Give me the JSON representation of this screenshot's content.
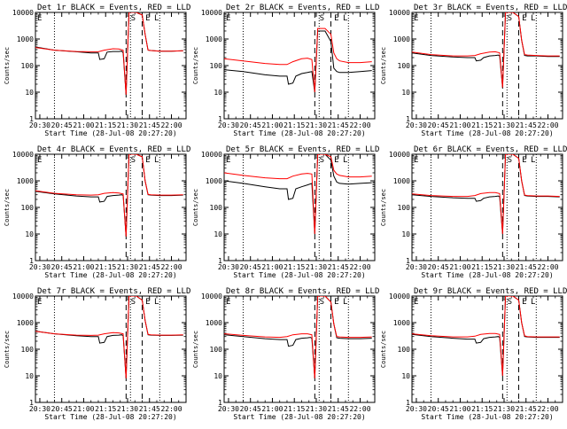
{
  "figure": {
    "x_axis_label": "Start Time (28-Jul-08 20:27:20)",
    "y_axis_label": "Counts/sec",
    "x_ticks": [
      "20:30",
      "20:45",
      "21:00",
      "21:15",
      "21:30",
      "21:45",
      "22:00"
    ],
    "y_ticks": [
      "1",
      "10",
      "100",
      "1000",
      "10000"
    ],
    "markers": [
      "E",
      "S",
      "E",
      "L"
    ],
    "series_colors": {
      "events": "#000000",
      "lld": "#ff0000"
    }
  },
  "chart_data": [
    {
      "type": "line",
      "title": "Det 1r BLACK = Events, RED = LLD",
      "y_scale": "log",
      "ylim": [
        1,
        10000
      ],
      "xlim": [
        "20:27",
        "22:10"
      ],
      "series": [
        {
          "color": "#000000",
          "x": [
            "20:27",
            "20:40",
            "20:55",
            "21:05",
            "21:10",
            "21:11",
            "21:14",
            "21:16",
            "21:20",
            "21:24",
            "21:26",
            "21:27",
            "21:29",
            "21:31",
            "21:33",
            "21:36",
            "21:40",
            "21:42",
            "21:44",
            "21:46",
            "21:52",
            "22:00",
            "22:08"
          ],
          "y": [
            500,
            380,
            330,
            300,
            300,
            170,
            180,
            320,
            340,
            340,
            350,
            300,
            8,
            10000,
            10000,
            10000,
            8000,
            1500,
            380,
            370,
            350,
            350,
            360
          ]
        },
        {
          "color": "#ff0000",
          "x": [
            "20:27",
            "20:40",
            "20:55",
            "21:05",
            "21:10",
            "21:14",
            "21:20",
            "21:24",
            "21:27",
            "21:29",
            "21:31",
            "21:33",
            "21:36",
            "21:40",
            "21:42",
            "21:44",
            "21:46",
            "21:52",
            "22:00",
            "22:08"
          ],
          "y": [
            480,
            380,
            340,
            330,
            330,
            380,
            430,
            420,
            380,
            8,
            10000,
            10000,
            10000,
            8000,
            1500,
            380,
            370,
            350,
            350,
            360
          ]
        }
      ]
    },
    {
      "type": "line",
      "title": "Det 2r BLACK = Events, RED = LLD",
      "y_scale": "log",
      "ylim": [
        1,
        10000
      ],
      "xlim": [
        "20:27",
        "22:10"
      ],
      "series": [
        {
          "color": "#000000",
          "x": [
            "20:27",
            "20:40",
            "20:55",
            "21:05",
            "21:10",
            "21:11",
            "21:14",
            "21:16",
            "21:20",
            "21:24",
            "21:27",
            "21:29",
            "21:31",
            "21:33",
            "21:36",
            "21:40",
            "21:42",
            "21:44",
            "21:46",
            "21:52",
            "22:00",
            "22:08"
          ],
          "y": [
            70,
            60,
            45,
            40,
            40,
            20,
            22,
            40,
            50,
            55,
            60,
            10,
            2000,
            2000,
            2000,
            800,
            80,
            60,
            55,
            55,
            60,
            65
          ]
        },
        {
          "color": "#ff0000",
          "x": [
            "20:27",
            "20:40",
            "20:55",
            "21:05",
            "21:10",
            "21:14",
            "21:20",
            "21:24",
            "21:27",
            "21:29",
            "21:31",
            "21:33",
            "21:36",
            "21:40",
            "21:42",
            "21:44",
            "21:46",
            "21:52",
            "22:00",
            "22:08"
          ],
          "y": [
            180,
            150,
            120,
            110,
            110,
            140,
            180,
            190,
            170,
            10,
            2500,
            2500,
            2500,
            1500,
            300,
            180,
            150,
            130,
            130,
            140
          ]
        }
      ]
    },
    {
      "type": "line",
      "title": "Det 3r BLACK = Events, RED = LLD",
      "y_scale": "log",
      "ylim": [
        1,
        10000
      ],
      "xlim": [
        "20:27",
        "22:10"
      ],
      "series": [
        {
          "color": "#000000",
          "x": [
            "20:27",
            "20:40",
            "20:55",
            "21:05",
            "21:10",
            "21:11",
            "21:14",
            "21:16",
            "21:20",
            "21:24",
            "21:26",
            "21:27",
            "21:29",
            "21:31",
            "21:33",
            "21:36",
            "21:40",
            "21:42",
            "21:44",
            "21:46",
            "21:52",
            "22:00",
            "22:08"
          ],
          "y": [
            300,
            240,
            210,
            200,
            200,
            150,
            160,
            200,
            230,
            240,
            250,
            230,
            15,
            10000,
            10000,
            10000,
            7000,
            900,
            240,
            230,
            230,
            220,
            220
          ]
        },
        {
          "color": "#ff0000",
          "x": [
            "20:27",
            "20:40",
            "20:55",
            "21:05",
            "21:10",
            "21:14",
            "21:20",
            "21:24",
            "21:27",
            "21:29",
            "21:31",
            "21:33",
            "21:36",
            "21:40",
            "21:42",
            "21:44",
            "21:46",
            "21:52",
            "22:00",
            "22:08"
          ],
          "y": [
            320,
            260,
            230,
            230,
            240,
            280,
            320,
            330,
            300,
            15,
            10000,
            10000,
            10000,
            7000,
            900,
            260,
            250,
            240,
            230,
            230
          ]
        }
      ]
    },
    {
      "type": "line",
      "title": "Det 4r BLACK = Events, RED = LLD",
      "y_scale": "log",
      "ylim": [
        1,
        10000
      ],
      "xlim": [
        "20:27",
        "22:10"
      ],
      "series": [
        {
          "color": "#000000",
          "x": [
            "20:27",
            "20:40",
            "20:55",
            "21:05",
            "21:10",
            "21:11",
            "21:14",
            "21:16",
            "21:20",
            "21:24",
            "21:26",
            "21:27",
            "21:29",
            "21:31",
            "21:33",
            "21:36",
            "21:40",
            "21:42",
            "21:44",
            "21:46",
            "21:52",
            "22:00",
            "22:08"
          ],
          "y": [
            400,
            320,
            270,
            250,
            250,
            160,
            170,
            260,
            280,
            290,
            300,
            280,
            8,
            10000,
            10000,
            10000,
            8000,
            1000,
            300,
            290,
            280,
            280,
            290
          ]
        },
        {
          "color": "#ff0000",
          "x": [
            "20:27",
            "20:40",
            "20:55",
            "21:05",
            "21:10",
            "21:14",
            "21:20",
            "21:24",
            "21:27",
            "21:29",
            "21:31",
            "21:33",
            "21:36",
            "21:40",
            "21:42",
            "21:44",
            "21:46",
            "21:52",
            "22:00",
            "22:08"
          ],
          "y": [
            420,
            340,
            300,
            290,
            300,
            340,
            360,
            350,
            320,
            8,
            10000,
            10000,
            10000,
            8000,
            1000,
            310,
            300,
            290,
            290,
            300
          ]
        }
      ]
    },
    {
      "type": "line",
      "title": "Det 5r BLACK = Events, RED = LLD",
      "y_scale": "log",
      "ylim": [
        1,
        10000
      ],
      "xlim": [
        "20:27",
        "22:10"
      ],
      "series": [
        {
          "color": "#000000",
          "x": [
            "20:27",
            "20:40",
            "20:55",
            "21:05",
            "21:10",
            "21:11",
            "21:14",
            "21:16",
            "21:20",
            "21:24",
            "21:27",
            "21:29",
            "21:31",
            "21:33",
            "21:36",
            "21:40",
            "21:42",
            "21:44",
            "21:46",
            "21:52",
            "22:00",
            "22:08"
          ],
          "y": [
            1000,
            800,
            600,
            500,
            500,
            200,
            220,
            500,
            600,
            700,
            800,
            10,
            10000,
            10000,
            10000,
            6000,
            1500,
            900,
            800,
            750,
            800,
            850
          ]
        },
        {
          "color": "#ff0000",
          "x": [
            "20:27",
            "20:40",
            "20:55",
            "21:05",
            "21:10",
            "21:14",
            "21:20",
            "21:24",
            "21:27",
            "21:29",
            "21:31",
            "21:33",
            "21:36",
            "21:40",
            "21:42",
            "21:44",
            "21:46",
            "21:52",
            "22:00",
            "22:08"
          ],
          "y": [
            2000,
            1600,
            1300,
            1200,
            1200,
            1500,
            1800,
            1900,
            1800,
            10,
            10000,
            10000,
            10000,
            8000,
            2500,
            1800,
            1600,
            1400,
            1400,
            1500
          ]
        }
      ]
    },
    {
      "type": "line",
      "title": "Det 6r BLACK = Events, RED = LLD",
      "y_scale": "log",
      "ylim": [
        1,
        10000
      ],
      "xlim": [
        "20:27",
        "22:10"
      ],
      "series": [
        {
          "color": "#000000",
          "x": [
            "20:27",
            "20:40",
            "20:55",
            "21:05",
            "21:10",
            "21:11",
            "21:14",
            "21:16",
            "21:20",
            "21:24",
            "21:26",
            "21:27",
            "21:29",
            "21:31",
            "21:33",
            "21:36",
            "21:40",
            "21:42",
            "21:44",
            "21:46",
            "21:52",
            "22:00",
            "22:08"
          ],
          "y": [
            300,
            260,
            230,
            220,
            220,
            170,
            180,
            220,
            250,
            260,
            270,
            250,
            10,
            10000,
            10000,
            10000,
            7000,
            1000,
            280,
            270,
            260,
            260,
            250
          ]
        },
        {
          "color": "#ff0000",
          "x": [
            "20:27",
            "20:40",
            "20:55",
            "21:05",
            "21:10",
            "21:14",
            "21:20",
            "21:24",
            "21:27",
            "21:29",
            "21:31",
            "21:33",
            "21:36",
            "21:40",
            "21:42",
            "21:44",
            "21:46",
            "21:52",
            "22:00",
            "22:08"
          ],
          "y": [
            320,
            280,
            260,
            260,
            280,
            330,
            360,
            360,
            330,
            10,
            10000,
            10000,
            10000,
            7000,
            1000,
            290,
            280,
            270,
            270,
            260
          ]
        }
      ]
    },
    {
      "type": "line",
      "title": "Det 7r BLACK = Events, RED = LLD",
      "y_scale": "log",
      "ylim": [
        1,
        10000
      ],
      "xlim": [
        "20:27",
        "22:10"
      ],
      "series": [
        {
          "color": "#000000",
          "x": [
            "20:27",
            "20:40",
            "20:55",
            "21:05",
            "21:10",
            "21:11",
            "21:14",
            "21:16",
            "21:20",
            "21:24",
            "21:26",
            "21:27",
            "21:29",
            "21:31",
            "21:33",
            "21:36",
            "21:40",
            "21:42",
            "21:44",
            "21:46",
            "21:52",
            "22:00",
            "22:08"
          ],
          "y": [
            480,
            380,
            320,
            300,
            300,
            170,
            180,
            300,
            330,
            340,
            350,
            320,
            8,
            10000,
            10000,
            10000,
            7000,
            1200,
            350,
            340,
            330,
            330,
            340
          ]
        },
        {
          "color": "#ff0000",
          "x": [
            "20:27",
            "20:40",
            "20:55",
            "21:05",
            "21:10",
            "21:14",
            "21:20",
            "21:24",
            "21:27",
            "21:29",
            "21:31",
            "21:33",
            "21:36",
            "21:40",
            "21:42",
            "21:44",
            "21:46",
            "21:52",
            "22:00",
            "22:08"
          ],
          "y": [
            470,
            380,
            340,
            330,
            340,
            380,
            420,
            410,
            380,
            8,
            10000,
            10000,
            10000,
            7000,
            1200,
            360,
            350,
            340,
            340,
            350
          ]
        }
      ]
    },
    {
      "type": "line",
      "title": "Det 8r BLACK = Events, RED = LLD",
      "y_scale": "log",
      "ylim": [
        1,
        10000
      ],
      "xlim": [
        "20:27",
        "22:10"
      ],
      "series": [
        {
          "color": "#000000",
          "x": [
            "20:27",
            "20:40",
            "20:55",
            "21:05",
            "21:10",
            "21:11",
            "21:14",
            "21:16",
            "21:20",
            "21:24",
            "21:26",
            "21:27",
            "21:29",
            "21:31",
            "21:33",
            "21:36",
            "21:40",
            "21:42",
            "21:44",
            "21:46",
            "21:52",
            "22:00",
            "22:08"
          ],
          "y": [
            350,
            300,
            250,
            230,
            230,
            130,
            140,
            230,
            260,
            270,
            280,
            260,
            8,
            10000,
            10000,
            10000,
            6000,
            900,
            270,
            260,
            250,
            250,
            260
          ]
        },
        {
          "color": "#ff0000",
          "x": [
            "20:27",
            "20:40",
            "20:55",
            "21:05",
            "21:10",
            "21:14",
            "21:20",
            "21:24",
            "21:27",
            "21:29",
            "21:31",
            "21:33",
            "21:36",
            "21:40",
            "21:42",
            "21:44",
            "21:46",
            "21:52",
            "22:00",
            "22:08"
          ],
          "y": [
            380,
            330,
            290,
            280,
            300,
            350,
            380,
            380,
            350,
            8,
            10000,
            10000,
            10000,
            6000,
            900,
            300,
            290,
            280,
            280,
            290
          ]
        }
      ]
    },
    {
      "type": "line",
      "title": "Det 9r BLACK = Events, RED = LLD",
      "y_scale": "log",
      "ylim": [
        1,
        10000
      ],
      "xlim": [
        "20:27",
        "22:10"
      ],
      "series": [
        {
          "color": "#000000",
          "x": [
            "20:27",
            "20:40",
            "20:55",
            "21:05",
            "21:10",
            "21:11",
            "21:14",
            "21:16",
            "21:20",
            "21:24",
            "21:26",
            "21:27",
            "21:29",
            "21:31",
            "21:33",
            "21:36",
            "21:40",
            "21:42",
            "21:44",
            "21:46",
            "21:52",
            "22:00",
            "22:08"
          ],
          "y": [
            360,
            300,
            260,
            240,
            240,
            170,
            180,
            250,
            280,
            290,
            300,
            280,
            10,
            10000,
            10000,
            10000,
            7000,
            1000,
            300,
            290,
            280,
            280,
            280
          ]
        },
        {
          "color": "#ff0000",
          "x": [
            "20:27",
            "20:40",
            "20:55",
            "21:05",
            "21:10",
            "21:14",
            "21:20",
            "21:24",
            "21:27",
            "21:29",
            "21:31",
            "21:33",
            "21:36",
            "21:40",
            "21:42",
            "21:44",
            "21:46",
            "21:52",
            "22:00",
            "22:08"
          ],
          "y": [
            380,
            320,
            290,
            290,
            310,
            360,
            390,
            390,
            360,
            10,
            10000,
            10000,
            10000,
            7000,
            1000,
            320,
            300,
            290,
            290,
            290
          ]
        }
      ]
    }
  ]
}
